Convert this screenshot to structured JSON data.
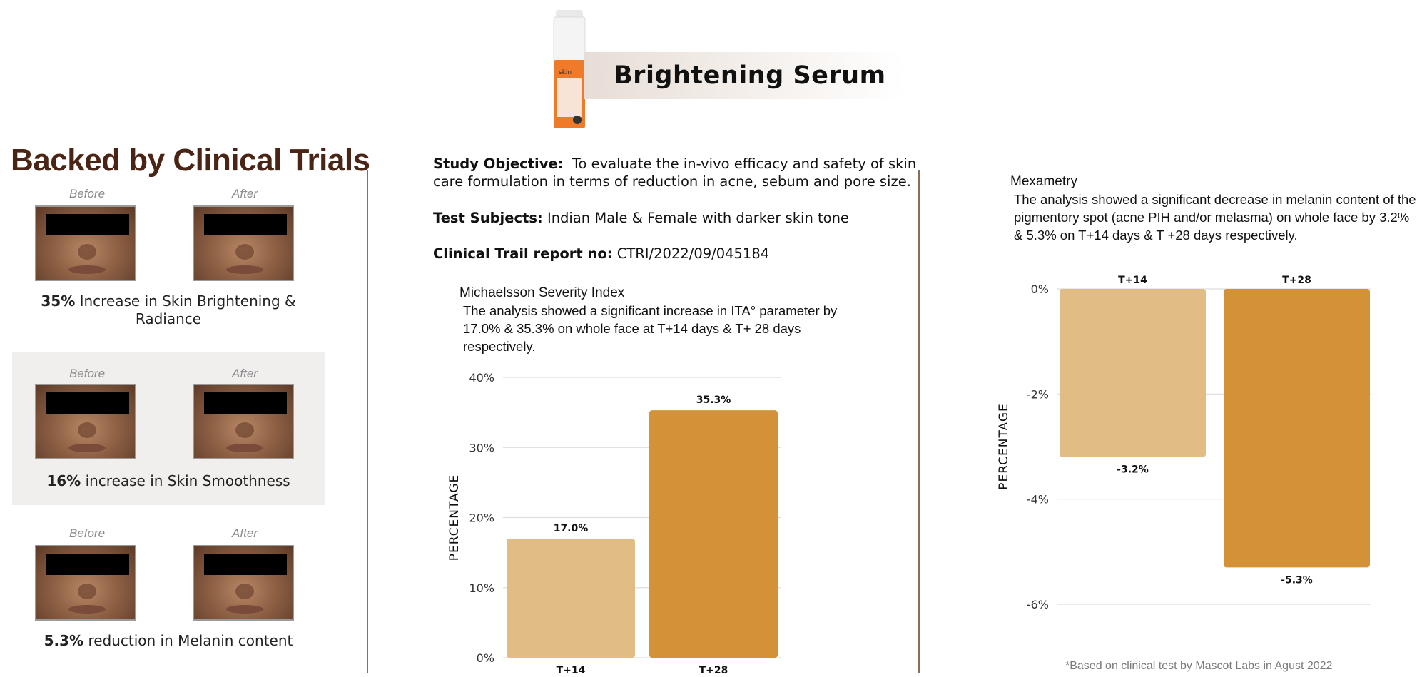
{
  "header": {
    "product_title": "Brightening Serum",
    "bottle_brand": "skin"
  },
  "left": {
    "heading": "Backed by Clinical Trials",
    "before_label": "Before",
    "after_label": "After",
    "results": [
      {
        "value": "35%",
        "text": "Increase in Skin Brightening & Radiance"
      },
      {
        "value": "16%",
        "text": "increase in Skin Smoothness"
      },
      {
        "value": "5.3%",
        "text": "reduction in Melanin content"
      }
    ]
  },
  "study": {
    "objective_label": "Study Objective:",
    "objective_text_1": "To evaluate the in-vivo efficacy and safety of skin",
    "objective_text_2": "care formulation in terms of reduction in acne, sebum and pore size.",
    "subjects_label": "Test Subjects:",
    "subjects_text": "Indian Male & Female with darker skin tone",
    "report_label": "Clinical Trail report no:",
    "report_text": "CTRI/2022/09/045184"
  },
  "chart_data": [
    {
      "type": "bar",
      "title": "Michaelsson Severity Index",
      "description": "The analysis showed a significant increase in ITA° parameter by 17.0% & 35.3% on whole face at T+14 days & T+ 28 days respectively.",
      "categories": [
        "T+14",
        "T+28"
      ],
      "values": [
        17.0,
        35.3
      ],
      "data_labels": [
        "17.0%",
        "35.3%"
      ],
      "ylabel": "PERCENTAGE",
      "ylim": [
        0,
        40
      ],
      "yticks": [
        0,
        10,
        20,
        30,
        40
      ],
      "ytick_labels": [
        "0%",
        "10%",
        "20%",
        "30%",
        "40%"
      ],
      "colors": [
        "#e2bc85",
        "#d39238"
      ],
      "grid": true
    },
    {
      "type": "bar",
      "title": "Mexametry",
      "description": "The analysis showed a significant decrease in melanin content of the pigmentory spot (acne PIH and/or melasma) on whole face by 3.2% & 5.3% on T+14 days & T +28 days respectively.",
      "categories": [
        "T+14",
        "T+28"
      ],
      "values": [
        -3.2,
        -5.3
      ],
      "data_labels": [
        "-3.2%",
        "-5.3%"
      ],
      "ylabel": "PERCENTAGE",
      "ylim": [
        -6,
        0
      ],
      "yticks": [
        0,
        -2,
        -4,
        -6
      ],
      "ytick_labels": [
        "0%",
        "-2%",
        "-4%",
        "-6%"
      ],
      "colors": [
        "#e2bc85",
        "#d39238"
      ],
      "grid": true
    }
  ],
  "footnote": "*Based on clinical test by Mascot Labs in Agust 2022"
}
